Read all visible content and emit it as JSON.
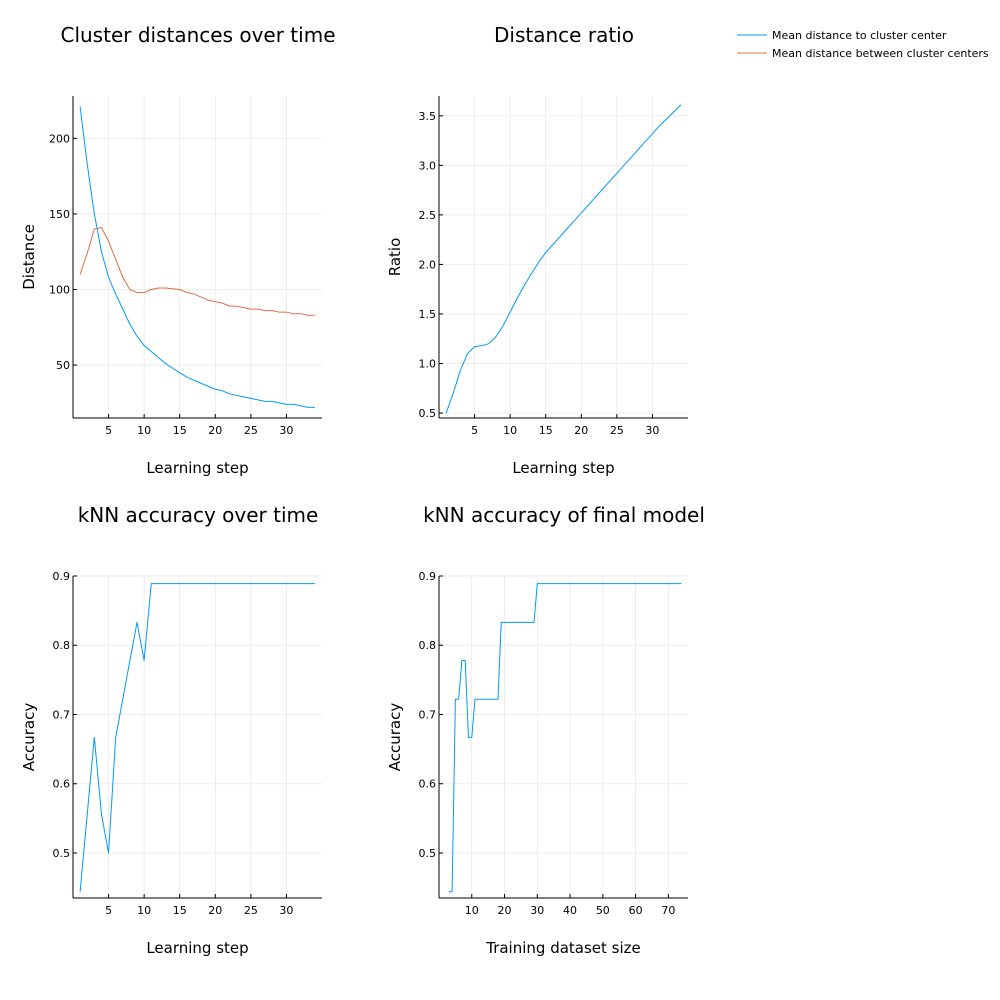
{
  "colors": {
    "series1": "#009AF9",
    "series2": "#E26F46",
    "grid": "#E6E6E6",
    "axis": "#000000"
  },
  "legend": {
    "position": "top-right",
    "entries": [
      "Mean distance to cluster center",
      "Mean distance between cluster centers"
    ]
  },
  "chart_data": [
    {
      "type": "line",
      "title": "Cluster distances over time",
      "xlabel": "Learning step",
      "ylabel": "Distance",
      "xlim": [
        0,
        35
      ],
      "ylim": [
        15,
        228
      ],
      "xticks": [
        5,
        10,
        15,
        20,
        25,
        30
      ],
      "yticks": [
        50,
        100,
        150,
        200
      ],
      "grid": true,
      "series": [
        {
          "name": "Mean distance to cluster center",
          "x": [
            1,
            2,
            3,
            4,
            5,
            6,
            7,
            8,
            9,
            10,
            11,
            12,
            13,
            14,
            15,
            16,
            17,
            18,
            19,
            20,
            21,
            22,
            23,
            24,
            25,
            26,
            27,
            28,
            29,
            30,
            31,
            32,
            33,
            34
          ],
          "y": [
            221,
            183,
            150,
            125,
            108,
            97,
            87,
            77,
            69,
            63,
            59,
            55,
            51,
            48,
            45,
            42,
            40,
            38,
            36,
            34,
            33,
            31,
            30,
            29,
            28,
            27,
            26,
            26,
            25,
            24,
            24,
            23,
            22,
            22
          ]
        },
        {
          "name": "Mean distance between cluster centers",
          "x": [
            1,
            2,
            3,
            4,
            5,
            6,
            7,
            8,
            9,
            10,
            11,
            12,
            13,
            14,
            15,
            16,
            17,
            18,
            19,
            20,
            21,
            22,
            23,
            24,
            25,
            26,
            27,
            28,
            29,
            30,
            31,
            32,
            33,
            34
          ],
          "y": [
            110,
            124,
            140,
            141,
            132,
            120,
            108,
            100,
            98,
            98,
            100,
            101,
            101,
            100.5,
            100,
            98,
            97,
            95,
            93,
            92,
            91,
            89,
            89,
            88,
            87,
            87,
            86,
            86,
            85,
            85,
            84,
            84,
            83,
            83
          ]
        }
      ]
    },
    {
      "type": "line",
      "title": "Distance ratio",
      "xlabel": "Learning step",
      "ylabel": "Ratio",
      "xlim": [
        0,
        35
      ],
      "ylim": [
        0.45,
        3.7
      ],
      "xticks": [
        5,
        10,
        15,
        20,
        25,
        30
      ],
      "yticks": [
        "0.5",
        "1.0",
        "1.5",
        "2.0",
        "2.5",
        "3.0",
        "3.5"
      ],
      "grid": true,
      "series": [
        {
          "name": "Mean distance to cluster center",
          "x": [
            1,
            2,
            3,
            4,
            5,
            6,
            7,
            8,
            9,
            10,
            11,
            12,
            13,
            14,
            15,
            16,
            17,
            18,
            19,
            20,
            21,
            22,
            23,
            24,
            25,
            26,
            27,
            28,
            29,
            30,
            31,
            32,
            33,
            34
          ],
          "y": [
            0.5,
            0.7,
            0.93,
            1.1,
            1.17,
            1.18,
            1.2,
            1.27,
            1.38,
            1.52,
            1.66,
            1.79,
            1.91,
            2.02,
            2.12,
            2.2,
            2.28,
            2.36,
            2.44,
            2.52,
            2.6,
            2.68,
            2.76,
            2.84,
            2.92,
            3.0,
            3.08,
            3.16,
            3.24,
            3.32,
            3.4,
            3.47,
            3.54,
            3.61
          ]
        }
      ]
    },
    {
      "type": "line",
      "title": "kNN accuracy over time",
      "xlabel": "Learning step",
      "ylabel": "Accuracy",
      "xlim": [
        0,
        35
      ],
      "ylim": [
        0.435,
        0.9
      ],
      "xticks": [
        5,
        10,
        15,
        20,
        25,
        30
      ],
      "yticks": [
        "0.5",
        "0.6",
        "0.7",
        "0.8",
        "0.9"
      ],
      "grid": true,
      "series": [
        {
          "name": "Mean distance to cluster center",
          "x": [
            1,
            2,
            3,
            4,
            5,
            6,
            7,
            8,
            9,
            10,
            11,
            12,
            13,
            14,
            15,
            16,
            17,
            18,
            19,
            20,
            21,
            22,
            23,
            24,
            25,
            26,
            27,
            28,
            29,
            30,
            31,
            32,
            33,
            34
          ],
          "y": [
            0.444,
            0.556,
            0.667,
            0.556,
            0.5,
            0.667,
            0.722,
            0.778,
            0.833,
            0.778,
            0.889,
            0.889,
            0.889,
            0.889,
            0.889,
            0.889,
            0.889,
            0.889,
            0.889,
            0.889,
            0.889,
            0.889,
            0.889,
            0.889,
            0.889,
            0.889,
            0.889,
            0.889,
            0.889,
            0.889,
            0.889,
            0.889,
            0.889,
            0.889
          ]
        }
      ]
    },
    {
      "type": "line",
      "title": "kNN accuracy of final model",
      "xlabel": "Training dataset size",
      "ylabel": "Accuracy",
      "xlim": [
        0,
        76
      ],
      "ylim": [
        0.435,
        0.9
      ],
      "xticks": [
        10,
        20,
        30,
        40,
        50,
        60,
        70
      ],
      "yticks": [
        "0.5",
        "0.6",
        "0.7",
        "0.8",
        "0.9"
      ],
      "grid": true,
      "series": [
        {
          "name": "Mean distance to cluster center",
          "x": [
            3,
            4,
            5,
            6,
            7,
            8,
            9,
            10,
            11,
            12,
            13,
            14,
            15,
            16,
            17,
            18,
            19,
            20,
            21,
            22,
            23,
            24,
            25,
            26,
            27,
            28,
            29,
            30,
            31,
            32,
            33,
            34,
            35,
            40,
            45,
            50,
            55,
            60,
            65,
            70,
            74
          ],
          "y": [
            0.444,
            0.444,
            0.722,
            0.722,
            0.778,
            0.778,
            0.667,
            0.667,
            0.722,
            0.722,
            0.722,
            0.722,
            0.722,
            0.722,
            0.722,
            0.722,
            0.833,
            0.833,
            0.833,
            0.833,
            0.833,
            0.833,
            0.833,
            0.833,
            0.833,
            0.833,
            0.833,
            0.889,
            0.889,
            0.889,
            0.889,
            0.889,
            0.889,
            0.889,
            0.889,
            0.889,
            0.889,
            0.889,
            0.889,
            0.889,
            0.889
          ]
        }
      ]
    }
  ]
}
